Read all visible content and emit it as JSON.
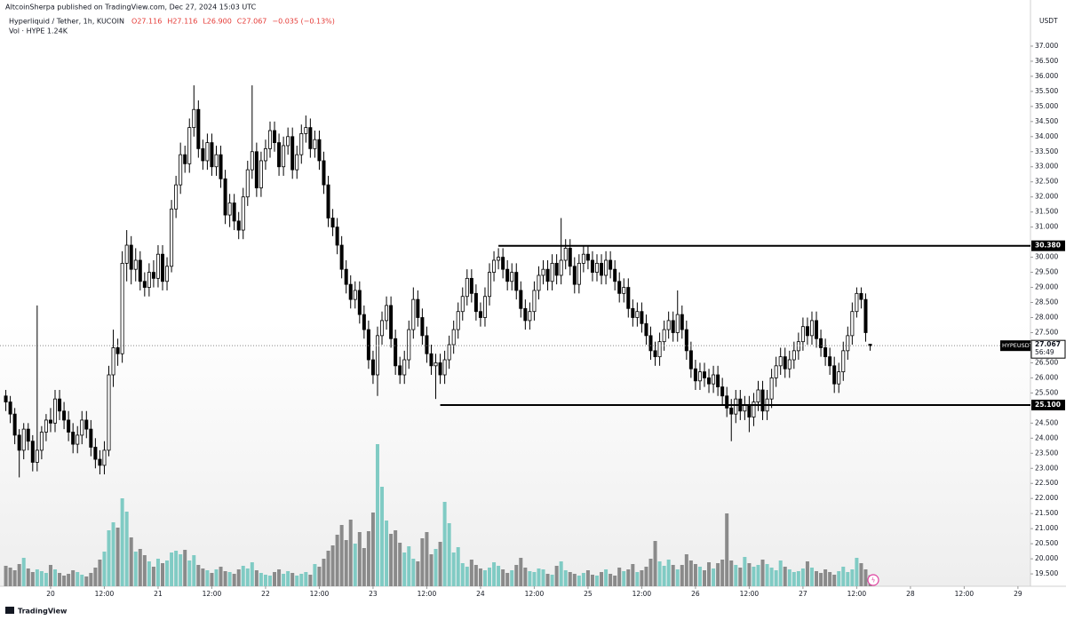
{
  "header": {
    "publisher": "AltcoinSherpa published on TradingView.com, Dec 27, 2024 15:03 UTC",
    "symbol": "Hyperliquid / Tether, 1h, KUCOIN",
    "ohlc": [
      "O27.116",
      "H27.116",
      "L26.900",
      "C27.067",
      "−0.035 (−0.13%)"
    ],
    "volume": "Vol · HYPE  1.24K"
  },
  "chart_data": {
    "type": "candlestick",
    "currency": "USDT",
    "up_color": "#ffffff",
    "down_color": "#000000",
    "volume_up_color": "#80cbc4",
    "volume_down_color": "#8a8a8a",
    "xlim": [
      -11.3,
      218.8
    ],
    "ylim": [
      19.09,
      38.53
    ],
    "grid": false,
    "xticks": [
      {
        "value": 0,
        "label": "20"
      },
      {
        "value": 12,
        "label": "12:00"
      },
      {
        "value": 24,
        "label": "21"
      },
      {
        "value": 36,
        "label": "12:00"
      },
      {
        "value": 48,
        "label": "22"
      },
      {
        "value": 60,
        "label": "12:00"
      },
      {
        "value": 72,
        "label": "23"
      },
      {
        "value": 84,
        "label": "12:00"
      },
      {
        "value": 96,
        "label": "24"
      },
      {
        "value": 108,
        "label": "12:00"
      },
      {
        "value": 120,
        "label": "25"
      },
      {
        "value": 132,
        "label": "12:00"
      },
      {
        "value": 144,
        "label": "26"
      },
      {
        "value": 156,
        "label": "12:00"
      },
      {
        "value": 168,
        "label": "27"
      },
      {
        "value": 180,
        "label": "12:00"
      },
      {
        "value": 192,
        "label": "28"
      },
      {
        "value": 204,
        "label": "12:00"
      },
      {
        "value": 216,
        "label": "29"
      }
    ],
    "yticks": [
      {
        "value": 19.5,
        "label": "19.500"
      },
      {
        "value": 20,
        "label": "20.000"
      },
      {
        "value": 20.5,
        "label": "20.500"
      },
      {
        "value": 21,
        "label": "21.000"
      },
      {
        "value": 21.5,
        "label": "21.500"
      },
      {
        "value": 22,
        "label": "22.000"
      },
      {
        "value": 22.5,
        "label": "22.500"
      },
      {
        "value": 23,
        "label": "23.000"
      },
      {
        "value": 23.5,
        "label": "23.500"
      },
      {
        "value": 24,
        "label": "24.000"
      },
      {
        "value": 24.5,
        "label": "24.500"
      },
      {
        "value": 25.5,
        "label": "25.500"
      },
      {
        "value": 26,
        "label": "26.000"
      },
      {
        "value": 26.5,
        "label": "26.500"
      },
      {
        "value": 27.5,
        "label": "27.500"
      },
      {
        "value": 28,
        "label": "28.000"
      },
      {
        "value": 28.5,
        "label": "28.500"
      },
      {
        "value": 29,
        "label": "29.000"
      },
      {
        "value": 29.5,
        "label": "29.500"
      },
      {
        "value": 30,
        "label": "30.000"
      },
      {
        "value": 31,
        "label": "31.000"
      },
      {
        "value": 31.5,
        "label": "31.500"
      },
      {
        "value": 32,
        "label": "32.000"
      },
      {
        "value": 32.5,
        "label": "32.500"
      },
      {
        "value": 33,
        "label": "33.000"
      },
      {
        "value": 33.5,
        "label": "33.500"
      },
      {
        "value": 34,
        "label": "34.000"
      },
      {
        "value": 34.5,
        "label": "34.500"
      },
      {
        "value": 35,
        "label": "35.000"
      },
      {
        "value": 35.5,
        "label": "35.500"
      },
      {
        "value": 36,
        "label": "36.000"
      },
      {
        "value": 36.5,
        "label": "36.500"
      },
      {
        "value": 37,
        "label": "37.000"
      }
    ],
    "levels": [
      {
        "value": 30.38,
        "label": "30.380",
        "from": 100
      },
      {
        "value": 25.1,
        "label": "25.100",
        "from": 87
      }
    ],
    "last_symbol": "HYPEUSDT",
    "last_label": "27.067",
    "countdown": "56:49",
    "x": [
      -10,
      -9,
      -8,
      -7,
      -6,
      -5,
      -4,
      -3,
      -2,
      -1,
      0,
      1,
      2,
      3,
      4,
      5,
      6,
      7,
      8,
      9,
      10,
      11,
      12,
      13,
      14,
      15,
      16,
      17,
      18,
      19,
      20,
      21,
      22,
      23,
      24,
      25,
      26,
      27,
      28,
      29,
      30,
      31,
      32,
      33,
      34,
      35,
      36,
      37,
      38,
      39,
      40,
      41,
      42,
      43,
      44,
      45,
      46,
      47,
      48,
      49,
      50,
      51,
      52,
      53,
      54,
      55,
      56,
      57,
      58,
      59,
      60,
      61,
      62,
      63,
      64,
      65,
      66,
      67,
      68,
      69,
      70,
      71,
      72,
      73,
      74,
      75,
      76,
      77,
      78,
      79,
      80,
      81,
      82,
      83,
      84,
      85,
      86,
      87,
      88,
      89,
      90,
      91,
      92,
      93,
      94,
      95,
      96,
      97,
      98,
      99,
      100,
      101,
      102,
      103,
      104,
      105,
      106,
      107,
      108,
      109,
      110,
      111,
      112,
      113,
      114,
      115,
      116,
      117,
      118,
      119,
      120,
      121,
      122,
      123,
      124,
      125,
      126,
      127,
      128,
      129,
      130,
      131,
      132,
      133,
      134,
      135,
      136,
      137,
      138,
      139,
      140,
      141,
      142,
      143,
      144,
      145,
      146,
      147,
      148,
      149,
      150,
      151,
      152,
      153,
      154,
      155,
      156,
      157,
      158,
      159,
      160,
      161,
      162,
      163,
      164,
      165,
      166,
      167,
      168,
      169,
      170,
      171,
      172,
      173,
      174,
      175,
      176,
      177,
      178,
      179,
      180,
      181,
      182,
      183
    ],
    "open": [
      25.4,
      25.2,
      24.8,
      24.1,
      23.6,
      24.3,
      23.9,
      23.2,
      23.6,
      24.2,
      24.6,
      24.5,
      25.3,
      24.9,
      24.6,
      24.2,
      23.8,
      24.1,
      24.6,
      24.3,
      23.7,
      23.3,
      23.1,
      23.6,
      26.1,
      27.0,
      26.8,
      29.8,
      30.4,
      29.6,
      29.9,
      29.2,
      29.0,
      29.5,
      29.3,
      30.1,
      29.2,
      29.7,
      31.6,
      32.4,
      33.4,
      33.1,
      34.3,
      34.9,
      33.6,
      33.2,
      33.8,
      33.0,
      33.4,
      32.6,
      31.4,
      31.8,
      31.2,
      30.9,
      32.0,
      32.9,
      33.5,
      32.3,
      33.2,
      33.6,
      34.2,
      33.8,
      33.0,
      33.7,
      34.0,
      32.9,
      33.4,
      34.1,
      34.3,
      33.6,
      33.9,
      33.2,
      32.4,
      31.3,
      31.0,
      30.4,
      29.6,
      29.1,
      28.6,
      28.9,
      28.1,
      27.6,
      26.6,
      26.1,
      27.4,
      27.9,
      28.4,
      27.3,
      26.4,
      26.1,
      26.6,
      27.6,
      28.6,
      28.0,
      27.4,
      26.8,
      26.4,
      26.5,
      26.1,
      26.6,
      27.1,
      27.6,
      28.2,
      28.7,
      29.3,
      28.8,
      28.2,
      28.0,
      28.7,
      29.5,
      29.9,
      30.0,
      29.6,
      29.2,
      29.5,
      28.9,
      28.3,
      27.9,
      28.2,
      28.9,
      29.4,
      29.6,
      29.2,
      29.8,
      29.4,
      29.9,
      30.3,
      29.7,
      29.1,
      29.8,
      30.1,
      29.9,
      29.5,
      29.8,
      29.4,
      29.9,
      29.6,
      29.2,
      28.8,
      29.0,
      28.3,
      28.0,
      28.2,
      27.8,
      27.4,
      26.9,
      26.7,
      27.2,
      27.6,
      27.9,
      27.5,
      28.1,
      27.6,
      26.9,
      26.3,
      25.9,
      26.2,
      26.0,
      25.8,
      26.1,
      25.7,
      25.4,
      25.0,
      24.8,
      25.3,
      24.9,
      25.1,
      24.7,
      25.2,
      25.6,
      24.9,
      25.3,
      26.0,
      26.4,
      26.7,
      26.3,
      26.6,
      26.9,
      27.2,
      27.7,
      27.4,
      27.9,
      27.3,
      27.0,
      26.7,
      26.4,
      25.8,
      26.2,
      26.9,
      27.4,
      28.2,
      28.8,
      28.6,
      27.116
    ],
    "high": [
      25.6,
      25.4,
      25.0,
      24.3,
      24.5,
      24.5,
      24.1,
      28.4,
      24.4,
      24.8,
      25.0,
      25.6,
      25.6,
      25.2,
      24.9,
      24.5,
      24.4,
      24.9,
      24.9,
      24.6,
      24.0,
      23.6,
      23.9,
      26.4,
      27.6,
      27.3,
      30.2,
      30.9,
      30.7,
      30.3,
      30.2,
      29.5,
      29.8,
      29.9,
      30.4,
      30.4,
      30.0,
      31.9,
      32.7,
      33.8,
      33.7,
      34.6,
      35.7,
      35.2,
      33.9,
      34.1,
      34.1,
      33.7,
      33.7,
      32.9,
      32.1,
      32.1,
      31.5,
      32.3,
      33.2,
      35.7,
      33.8,
      33.5,
      33.9,
      34.5,
      34.5,
      34.1,
      34.0,
      34.3,
      34.3,
      33.7,
      34.4,
      34.7,
      34.6,
      34.2,
      34.2,
      33.5,
      32.7,
      31.6,
      31.3,
      30.7,
      29.9,
      29.4,
      29.2,
      29.2,
      28.4,
      27.9,
      26.9,
      27.7,
      28.2,
      28.7,
      28.7,
      27.6,
      26.7,
      26.9,
      27.9,
      29.0,
      28.9,
      28.3,
      27.7,
      27.1,
      26.8,
      26.8,
      26.9,
      27.4,
      27.9,
      28.5,
      29.0,
      29.6,
      29.6,
      29.1,
      28.5,
      29.0,
      29.8,
      30.2,
      30.3,
      30.3,
      29.9,
      29.8,
      29.8,
      29.2,
      28.6,
      28.5,
      29.2,
      29.7,
      29.9,
      29.9,
      30.1,
      30.1,
      31.3,
      30.6,
      30.6,
      30.0,
      30.1,
      30.4,
      30.4,
      30.2,
      30.1,
      30.1,
      30.2,
      30.2,
      29.9,
      29.5,
      29.3,
      29.3,
      28.6,
      28.5,
      28.5,
      28.1,
      27.7,
      27.2,
      27.5,
      27.9,
      28.2,
      28.2,
      28.9,
      28.4,
      27.9,
      27.2,
      26.6,
      26.5,
      26.5,
      26.3,
      26.4,
      26.4,
      26.0,
      25.7,
      25.3,
      25.6,
      25.6,
      25.4,
      25.4,
      25.5,
      25.9,
      25.9,
      25.6,
      26.3,
      26.7,
      27.0,
      27.0,
      26.9,
      27.2,
      27.5,
      28.0,
      28.0,
      28.2,
      28.2,
      27.6,
      27.3,
      27.0,
      26.7,
      26.5,
      27.2,
      27.7,
      28.5,
      29.0,
      29.0,
      28.8,
      27.116
    ],
    "low": [
      24.9,
      24.5,
      23.8,
      22.7,
      23.3,
      23.6,
      22.9,
      22.9,
      23.3,
      23.9,
      24.2,
      24.2,
      24.6,
      24.3,
      23.9,
      23.5,
      23.5,
      23.8,
      24.0,
      23.4,
      23.0,
      22.8,
      22.8,
      23.4,
      25.7,
      26.4,
      26.5,
      29.2,
      29.1,
      29.2,
      28.9,
      28.7,
      28.7,
      29.0,
      29.0,
      28.9,
      28.9,
      29.5,
      31.3,
      32.1,
      32.8,
      32.8,
      34.0,
      33.3,
      32.9,
      32.9,
      32.7,
      32.7,
      32.3,
      31.1,
      31.0,
      30.9,
      30.6,
      30.6,
      31.7,
      32.6,
      32.0,
      32.0,
      32.9,
      33.3,
      33.5,
      32.7,
      32.7,
      33.4,
      32.6,
      32.6,
      33.1,
      33.8,
      33.3,
      33.3,
      32.9,
      32.1,
      31.0,
      30.7,
      30.1,
      29.3,
      28.8,
      28.3,
      28.3,
      27.8,
      27.3,
      26.3,
      25.8,
      25.4,
      27.1,
      27.6,
      27.0,
      26.1,
      25.8,
      25.8,
      26.3,
      27.3,
      27.7,
      27.1,
      26.5,
      26.1,
      25.3,
      25.8,
      25.8,
      26.3,
      26.8,
      27.3,
      27.9,
      28.4,
      28.5,
      27.9,
      27.7,
      27.7,
      28.4,
      29.2,
      29.6,
      29.3,
      28.9,
      28.9,
      28.6,
      28.0,
      27.6,
      27.6,
      27.9,
      28.6,
      29.1,
      28.9,
      28.9,
      29.1,
      29.1,
      29.6,
      29.4,
      28.8,
      28.8,
      29.5,
      29.6,
      29.2,
      29.2,
      29.1,
      29.1,
      29.3,
      28.9,
      28.5,
      28.5,
      28.0,
      27.7,
      27.7,
      27.5,
      27.1,
      26.6,
      26.4,
      26.4,
      26.9,
      27.3,
      27.2,
      27.2,
      27.3,
      26.6,
      26.0,
      25.6,
      25.6,
      25.7,
      25.5,
      25.5,
      25.4,
      25.1,
      24.7,
      23.9,
      24.5,
      24.6,
      24.6,
      24.2,
      24.4,
      24.9,
      24.6,
      24.6,
      25.0,
      25.7,
      26.1,
      26.0,
      26.0,
      26.3,
      26.6,
      26.9,
      27.1,
      27.1,
      27.0,
      26.7,
      26.4,
      26.1,
      25.5,
      25.5,
      25.9,
      26.6,
      27.1,
      28.0,
      28.3,
      27.2,
      26.9
    ],
    "close": [
      25.2,
      24.8,
      24.1,
      23.6,
      24.3,
      23.9,
      23.2,
      23.6,
      24.2,
      24.6,
      24.5,
      25.3,
      24.9,
      24.6,
      24.2,
      23.8,
      24.1,
      24.6,
      24.3,
      23.7,
      23.3,
      23.1,
      23.6,
      26.1,
      27.0,
      26.8,
      29.8,
      30.4,
      29.6,
      29.9,
      29.2,
      29.0,
      29.5,
      29.3,
      30.1,
      29.2,
      29.7,
      31.6,
      32.4,
      33.4,
      33.1,
      34.3,
      34.9,
      33.6,
      33.2,
      33.8,
      33.0,
      33.4,
      32.6,
      31.4,
      31.8,
      31.2,
      30.9,
      32.0,
      32.9,
      33.5,
      32.3,
      33.2,
      33.6,
      34.2,
      33.8,
      33.0,
      33.7,
      34.0,
      32.9,
      33.4,
      34.1,
      34.3,
      33.6,
      33.9,
      33.2,
      32.4,
      31.3,
      31.0,
      30.4,
      29.6,
      29.1,
      28.6,
      28.9,
      28.1,
      27.6,
      26.6,
      26.1,
      27.4,
      27.9,
      28.4,
      27.3,
      26.4,
      26.1,
      26.6,
      27.6,
      28.6,
      28.0,
      27.4,
      26.8,
      26.4,
      26.5,
      26.1,
      26.6,
      27.1,
      27.6,
      28.2,
      28.7,
      29.3,
      28.8,
      28.2,
      28.0,
      28.7,
      29.5,
      29.9,
      30.0,
      29.6,
      29.2,
      29.5,
      28.9,
      28.3,
      27.9,
      28.2,
      28.9,
      29.4,
      29.6,
      29.2,
      29.8,
      29.4,
      29.9,
      30.3,
      29.7,
      29.1,
      29.8,
      30.1,
      29.9,
      29.5,
      29.8,
      29.4,
      29.9,
      29.6,
      29.2,
      28.8,
      29.0,
      28.3,
      28.0,
      28.2,
      27.8,
      27.4,
      26.9,
      26.7,
      27.2,
      27.6,
      27.9,
      27.5,
      28.1,
      27.6,
      26.9,
      26.3,
      25.9,
      26.2,
      26.0,
      25.8,
      26.1,
      25.7,
      25.4,
      25.0,
      24.8,
      25.3,
      24.9,
      25.1,
      24.7,
      25.2,
      25.6,
      24.9,
      25.3,
      26.0,
      26.4,
      26.7,
      26.3,
      26.6,
      26.9,
      27.2,
      27.7,
      27.4,
      27.9,
      27.3,
      27.0,
      26.7,
      26.4,
      25.8,
      26.2,
      26.9,
      27.4,
      28.2,
      28.8,
      28.6,
      27.5,
      27.067
    ],
    "volume": [
      2.3,
      2.1,
      1.8,
      2.5,
      3.2,
      2.0,
      1.6,
      1.9,
      1.7,
      1.5,
      2.4,
      1.9,
      1.5,
      1.2,
      1.4,
      1.8,
      1.6,
      1.3,
      1.1,
      1.5,
      2.1,
      3.0,
      3.9,
      6.3,
      7.2,
      6.6,
      9.9,
      8.4,
      5.5,
      3.9,
      4.2,
      3.5,
      2.8,
      2.2,
      3.1,
      2.6,
      2.9,
      3.8,
      4.0,
      3.6,
      4.1,
      2.9,
      3.5,
      2.4,
      2.0,
      1.8,
      1.5,
      1.9,
      2.2,
      1.7,
      1.6,
      1.4,
      1.9,
      2.3,
      2.0,
      2.7,
      1.8,
      1.5,
      1.3,
      1.2,
      1.6,
      1.9,
      1.4,
      1.7,
      1.5,
      1.2,
      1.4,
      1.6,
      1.3,
      2.5,
      2.2,
      3.1,
      4.0,
      4.6,
      5.8,
      6.9,
      5.2,
      7.5,
      4.8,
      6.1,
      4.3,
      6.2,
      8.3,
      16.0,
      11.2,
      7.4,
      5.9,
      6.3,
      4.9,
      3.8,
      4.5,
      3.1,
      2.8,
      5.4,
      6.1,
      3.6,
      4.2,
      5.0,
      9.5,
      7.1,
      3.8,
      4.4,
      2.6,
      2.2,
      3.0,
      2.4,
      2.0,
      1.8,
      2.1,
      2.7,
      2.3,
      1.9,
      1.5,
      1.8,
      2.4,
      3.2,
      2.1,
      1.7,
      1.6,
      2.0,
      1.9,
      1.4,
      1.3,
      2.3,
      2.8,
      1.8,
      1.6,
      1.4,
      1.2,
      1.5,
      1.8,
      1.3,
      1.2,
      1.6,
      1.9,
      1.4,
      1.2,
      2.1,
      1.7,
      1.9,
      2.5,
      1.6,
      1.8,
      2.2,
      3.1,
      5.1,
      2.8,
      2.3,
      3.0,
      2.4,
      1.9,
      2.4,
      3.6,
      2.9,
      2.5,
      2.2,
      1.8,
      2.7,
      2.0,
      2.6,
      3.0,
      8.2,
      2.9,
      2.4,
      2.1,
      3.3,
      2.6,
      2.2,
      2.4,
      3.0,
      2.5,
      2.1,
      1.8,
      2.9,
      2.2,
      1.9,
      1.6,
      1.7,
      2.0,
      2.8,
      2.1,
      1.7,
      1.5,
      1.9,
      1.6,
      1.3,
      1.7,
      2.2,
      1.6,
      1.9,
      3.2,
      2.6,
      1.9,
      1.24
    ]
  },
  "footer": {
    "brand": "TradingView"
  }
}
